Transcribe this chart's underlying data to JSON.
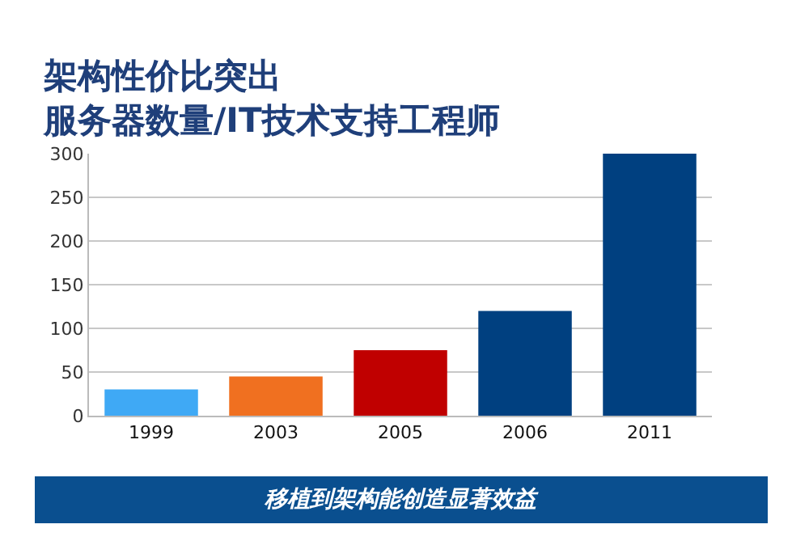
{
  "chart_data": {
    "type": "bar",
    "title": "架构性价比突出",
    "subtitle": "服务器数量/IT技术支持工程师",
    "categories": [
      "1999",
      "2003",
      "2005",
      "2006",
      "2011"
    ],
    "values": [
      30,
      45,
      75,
      120,
      300
    ],
    "colors": [
      "#3fa9f5",
      "#f07020",
      "#c00000",
      "#004080",
      "#004080"
    ],
    "ylim": [
      0,
      300
    ],
    "yticks": [
      0,
      50,
      100,
      150,
      200,
      250,
      300
    ],
    "grid": "y",
    "annotations": [
      "移植到架构能创造显著效益"
    ]
  }
}
